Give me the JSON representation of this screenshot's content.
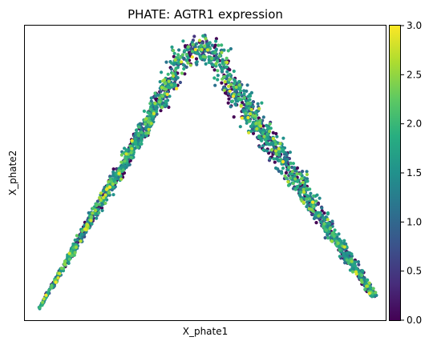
{
  "chart_data": {
    "type": "scatter",
    "title": "PHATE: AGTR1 expression",
    "xlabel": "X_phate1",
    "ylabel": "X_phate2",
    "x_ticks_shown": false,
    "y_ticks_shown": false,
    "grid": false,
    "xlim": [
      0,
      100
    ],
    "ylim": [
      0,
      100
    ],
    "colorbar": {
      "colormap": "viridis",
      "range": [
        0.0,
        3.0
      ],
      "ticks": [
        "0.0",
        "0.5",
        "1.0",
        "1.5",
        "2.0",
        "2.5",
        "3.0"
      ]
    },
    "structure": {
      "description_of_data_shape": "arch",
      "left_arm": {
        "start": [
          4,
          4
        ],
        "end": [
          41,
          82
        ]
      },
      "right_arm": {
        "start": [
          56,
          82
        ],
        "end": [
          97,
          8
        ]
      },
      "apex": [
        48,
        92
      ]
    },
    "approx_point_count": 2200
  }
}
